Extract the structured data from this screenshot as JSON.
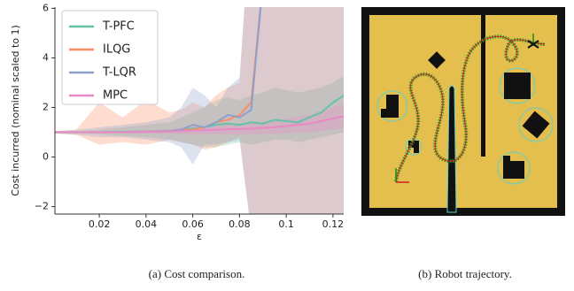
{
  "chart_data": {
    "type": "line",
    "xlabel": "ε",
    "ylabel": "Cost incurred (nominal scaled to 1)",
    "x": [
      0.001,
      0.01,
      0.02,
      0.03,
      0.04,
      0.05,
      0.055,
      0.06,
      0.065,
      0.07,
      0.075,
      0.08,
      0.085,
      0.09,
      0.095,
      0.1,
      0.105,
      0.11,
      0.115,
      0.12,
      0.125
    ],
    "xlim": [
      0.001,
      0.1246
    ],
    "xticks": [
      0.02,
      0.04,
      0.06,
      0.08,
      0.1,
      0.12
    ],
    "ylim": [
      -2.3,
      6.05
    ],
    "yticks": [
      {
        "value": -2,
        "label": "−2"
      },
      0,
      2,
      4,
      6
    ],
    "legend": "upper left",
    "series": [
      {
        "name": "T-PFC",
        "color": "#66c2a5",
        "values": [
          1,
          1,
          1,
          1.02,
          1.03,
          1.05,
          1.1,
          1.15,
          1.2,
          1.3,
          1.35,
          1.3,
          1.4,
          1.35,
          1.5,
          1.45,
          1.4,
          1.6,
          1.8,
          2.2,
          2.5
        ],
        "lower": [
          0.95,
          0.95,
          0.92,
          0.85,
          0.8,
          0.7,
          0.6,
          0.5,
          0.4,
          0.4,
          0.5,
          0.6,
          0.5,
          0.6,
          0.7,
          0.7,
          0.6,
          0.7,
          0.8,
          0.9,
          1.0
        ],
        "upper": [
          1.05,
          1.05,
          1.1,
          1.2,
          1.3,
          1.4,
          1.6,
          1.8,
          2.0,
          2.3,
          2.4,
          2.3,
          2.5,
          2.6,
          2.8,
          2.7,
          2.6,
          2.7,
          2.8,
          3.0,
          3.3
        ]
      },
      {
        "name": "ILQG",
        "color": "#fc8d62",
        "values": [
          1,
          1,
          1,
          1,
          1.02,
          1.05,
          1.1,
          1.1,
          1.2,
          1.4,
          1.5,
          1.7,
          2.2,
          7,
          null,
          null,
          null,
          null,
          null,
          null,
          null
        ],
        "lower": [
          0.95,
          0.9,
          0.5,
          0.6,
          0.5,
          0.7,
          0.6,
          0.5,
          0.3,
          0.4,
          0.6,
          0.8,
          -3,
          -3,
          -3,
          -3,
          -3,
          -3,
          -3,
          -3,
          -3
        ],
        "upper": [
          1.05,
          1.1,
          2.2,
          1.6,
          2.3,
          1.8,
          1.9,
          2.2,
          2.0,
          2.5,
          2.8,
          3.0,
          10,
          10,
          10,
          10,
          10,
          10,
          10,
          10,
          10
        ]
      },
      {
        "name": "T-LQR",
        "color": "#8da0cb",
        "values": [
          1,
          1,
          1,
          1,
          1.02,
          1.05,
          1.1,
          1.3,
          1.2,
          1.4,
          1.7,
          1.6,
          1.9,
          7,
          null,
          null,
          null,
          null,
          null,
          null,
          null
        ],
        "lower": [
          0.95,
          0.9,
          0.8,
          0.8,
          0.7,
          0.6,
          0.4,
          -0.3,
          0.5,
          0.5,
          0.6,
          0.7,
          -3,
          -3,
          -3,
          -3,
          -3,
          -3,
          -3,
          -3,
          -3
        ],
        "upper": [
          1.05,
          1.1,
          1.2,
          1.3,
          1.4,
          1.6,
          2.0,
          2.8,
          2.5,
          2.0,
          2.8,
          3.2,
          10,
          10,
          10,
          10,
          10,
          10,
          10,
          10,
          10
        ]
      },
      {
        "name": "MPC",
        "color": "#e78ac3",
        "values": [
          1,
          1,
          1,
          1,
          1.02,
          1.03,
          1.05,
          1.07,
          1.08,
          1.1,
          1.12,
          1.13,
          1.15,
          1.18,
          1.2,
          1.25,
          1.3,
          1.35,
          1.45,
          1.55,
          1.65
        ],
        "lower": [
          0.98,
          0.97,
          0.96,
          0.95,
          0.95,
          0.94,
          0.93,
          0.92,
          0.92,
          0.92,
          0.92,
          0.92,
          0.92,
          0.93,
          0.93,
          0.95,
          0.97,
          1.0,
          1.05,
          1.1,
          1.15
        ],
        "upper": [
          1.02,
          1.03,
          1.04,
          1.05,
          1.09,
          1.12,
          1.17,
          1.22,
          1.24,
          1.28,
          1.32,
          1.34,
          1.38,
          1.43,
          1.47,
          1.55,
          1.63,
          1.7,
          1.85,
          2.0,
          2.15
        ]
      }
    ]
  },
  "captions": [
    "(a) Cost comparison.",
    "(b) Robot trajectory."
  ]
}
